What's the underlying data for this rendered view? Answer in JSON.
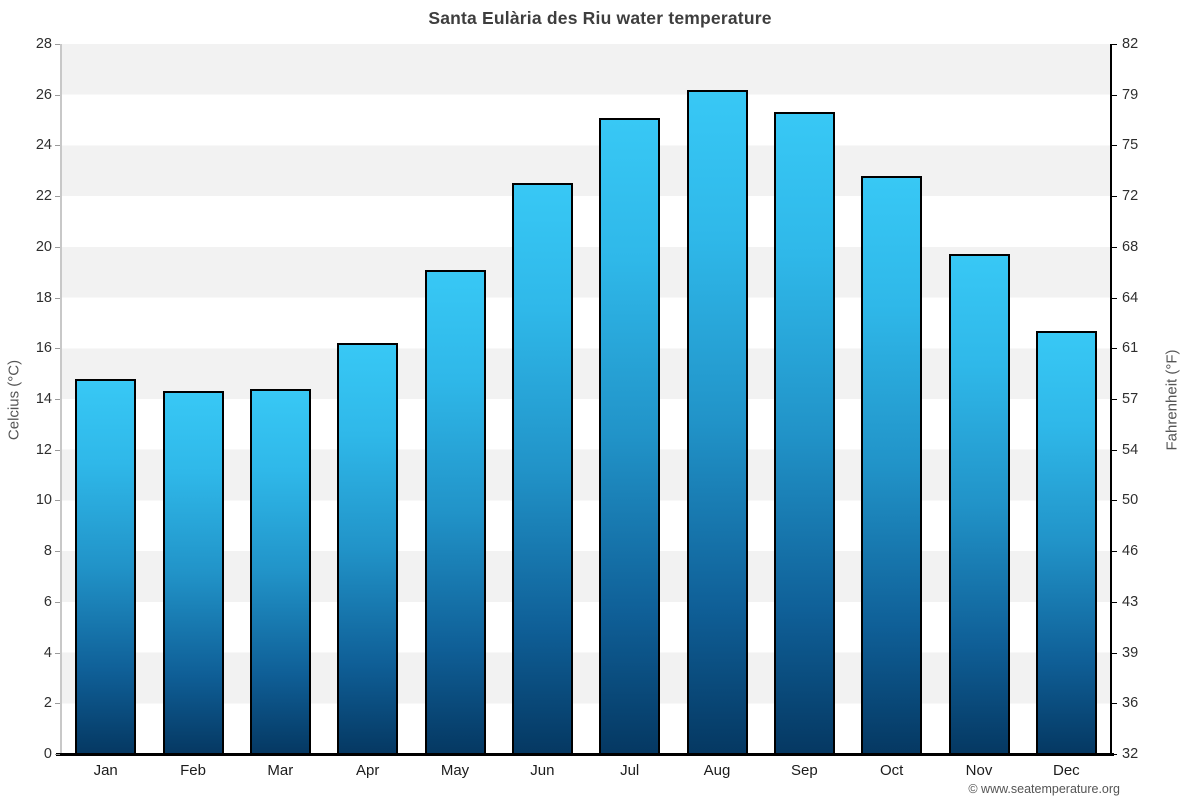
{
  "title": "Santa Eulària des Riu water temperature",
  "footer": {
    "credit": "© www.seatemperature.org"
  },
  "axes": {
    "left_label": "Celcius (°C)",
    "right_label": "Fahrenheit (°F)",
    "celsius_ticks": [
      28,
      26,
      24,
      22,
      20,
      18,
      16,
      14,
      12,
      10,
      8,
      6,
      4,
      2,
      0
    ],
    "fahrenheit_ticks": [
      82,
      79,
      75,
      72,
      68,
      64,
      61,
      57,
      54,
      50,
      46,
      43,
      39,
      36,
      32
    ]
  },
  "colors": {
    "bar_gradient_top": "#38c8f5",
    "bar_gradient_bottom": "#053862",
    "bar_border": "#000000",
    "band_gray": "#f2f2f2",
    "band_white": "#ffffff",
    "title_text": "#3e3e3e",
    "axis_text": "#2e2e2e",
    "axis_title_text": "#555555",
    "bottom_axis": "#000000",
    "left_axis": "#c8c8c8"
  },
  "chart_data": {
    "type": "bar",
    "title": "Santa Eulària des Riu water temperature",
    "categories": [
      "Jan",
      "Feb",
      "Mar",
      "Apr",
      "May",
      "Jun",
      "Jul",
      "Aug",
      "Sep",
      "Oct",
      "Nov",
      "Dec"
    ],
    "values": [
      14.8,
      14.3,
      14.4,
      16.2,
      19.1,
      22.5,
      25.1,
      26.2,
      25.3,
      22.8,
      19.7,
      16.7
    ],
    "values_unit": "°C",
    "xlabel": "",
    "ylabel": "Celcius (°C)",
    "y2label": "Fahrenheit (°F)",
    "ylim": [
      0,
      28
    ],
    "y2lim": [
      32,
      82
    ],
    "ytick_step": 2,
    "grid": "alternating horizontal bands every 2°C, gray on even bands (2-4, 6-8, 10-12, 14-16, 18-20, 22-24, 26-28)",
    "legend": "none",
    "annotation": "© www.seatemperature.org"
  }
}
